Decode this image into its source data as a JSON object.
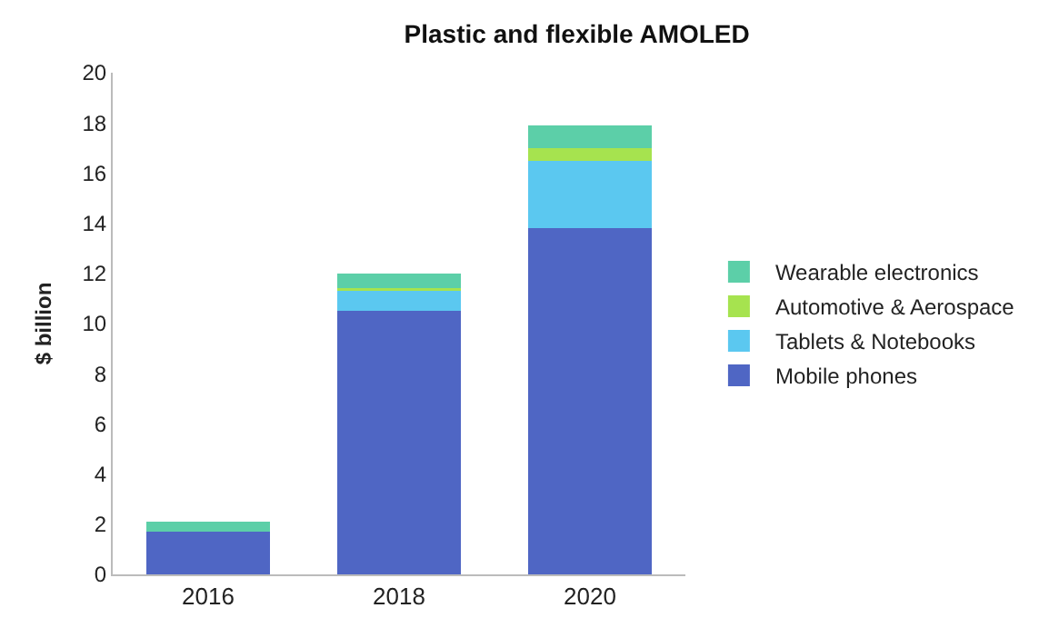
{
  "chart_data": {
    "type": "bar",
    "title": "Plastic and flexible AMOLED",
    "ylabel": "$ billion",
    "categories": [
      "2016",
      "2018",
      "2020"
    ],
    "stacked": true,
    "ylim": [
      0,
      20
    ],
    "yticks": [
      0,
      2,
      4,
      6,
      8,
      10,
      12,
      14,
      16,
      18,
      20
    ],
    "grid": false,
    "legend": "right",
    "series": [
      {
        "name": "Mobile phones",
        "color": "#4f66c4",
        "values": [
          1.7,
          10.5,
          13.8
        ]
      },
      {
        "name": "Tablets & Notebooks",
        "color": "#5bc8f0",
        "values": [
          0,
          0.8,
          2.7
        ]
      },
      {
        "name": "Automotive & Aerospace",
        "color": "#a6e34f",
        "values": [
          0,
          0.1,
          0.5
        ]
      },
      {
        "name": "Wearable electronics",
        "color": "#5ccfa8",
        "values": [
          0.4,
          0.6,
          0.9
        ]
      }
    ]
  }
}
